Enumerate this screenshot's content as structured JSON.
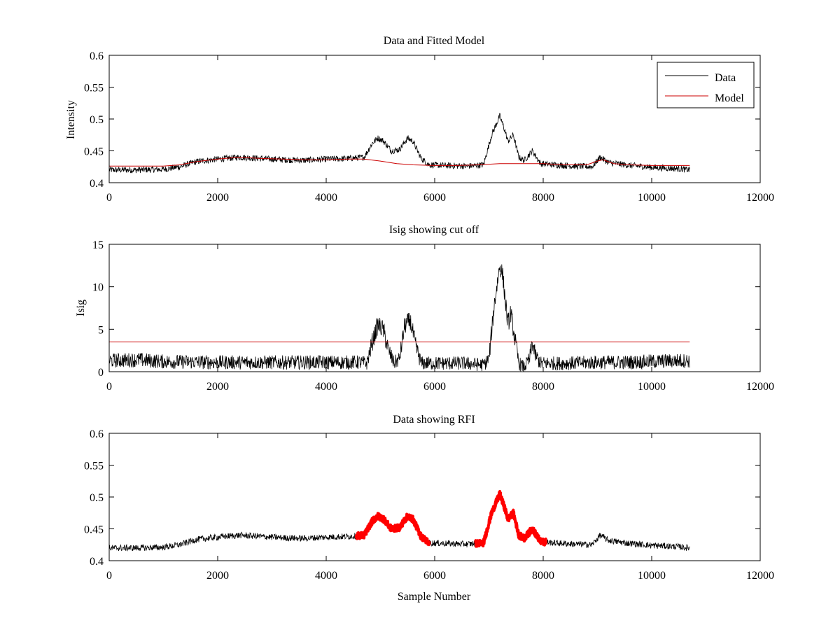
{
  "figure": {
    "background": "#ffffff",
    "data_color": "#000000",
    "model_color": "#cc0000",
    "rfi_color": "#ff0000"
  },
  "chart_data": [
    {
      "type": "line",
      "title": "Data and Fitted Model",
      "xlabel": "",
      "ylabel": "Intensity",
      "xlim": [
        0,
        12000
      ],
      "ylim": [
        0.4,
        0.6
      ],
      "xticks": [
        "0",
        "2000",
        "4000",
        "6000",
        "8000",
        "10000",
        "12000"
      ],
      "yticks": [
        "0.4",
        "0.45",
        "0.5",
        "0.55",
        "0.6"
      ],
      "grid": false,
      "legend": "top-right",
      "noise": 0.005,
      "series": [
        {
          "name": "Data",
          "color": "#000000",
          "x": [
            0,
            500,
            1000,
            1300,
            1600,
            2000,
            2400,
            2800,
            3200,
            3600,
            4000,
            4400,
            4700,
            4850,
            4950,
            5050,
            5200,
            5350,
            5500,
            5600,
            5750,
            5900,
            6200,
            6600,
            6900,
            7050,
            7200,
            7300,
            7350,
            7450,
            7550,
            7650,
            7800,
            7950,
            8200,
            8600,
            8900,
            9050,
            9200,
            9500,
            10000,
            10500,
            10700
          ],
          "y": [
            0.42,
            0.42,
            0.421,
            0.425,
            0.433,
            0.437,
            0.44,
            0.438,
            0.436,
            0.435,
            0.437,
            0.438,
            0.44,
            0.462,
            0.47,
            0.466,
            0.45,
            0.452,
            0.47,
            0.465,
            0.438,
            0.428,
            0.427,
            0.426,
            0.428,
            0.475,
            0.505,
            0.48,
            0.465,
            0.475,
            0.44,
            0.435,
            0.45,
            0.43,
            0.428,
            0.426,
            0.425,
            0.44,
            0.432,
            0.428,
            0.424,
            0.422,
            0.42
          ]
        },
        {
          "name": "Model",
          "color": "#cc0000",
          "x": [
            0,
            1000,
            1300,
            1600,
            2000,
            2400,
            2800,
            3200,
            3600,
            4000,
            4400,
            4700,
            5000,
            5300,
            5600,
            6000,
            6400,
            6800,
            7000,
            7200,
            7600,
            8000,
            8400,
            8800,
            9000,
            9100,
            9300,
            9600,
            10000,
            10700
          ],
          "y": [
            0.426,
            0.426,
            0.428,
            0.433,
            0.437,
            0.44,
            0.438,
            0.437,
            0.436,
            0.436,
            0.437,
            0.437,
            0.434,
            0.43,
            0.428,
            0.427,
            0.427,
            0.428,
            0.429,
            0.43,
            0.43,
            0.43,
            0.428,
            0.428,
            0.434,
            0.436,
            0.43,
            0.428,
            0.427,
            0.427
          ]
        }
      ]
    },
    {
      "type": "line",
      "title": "Isig showing cut off",
      "xlabel": "",
      "ylabel": "Isig",
      "xlim": [
        0,
        12000
      ],
      "ylim": [
        0,
        15
      ],
      "xticks": [
        "0",
        "2000",
        "4000",
        "6000",
        "8000",
        "10000",
        "12000"
      ],
      "yticks": [
        "0",
        "5",
        "10",
        "15"
      ],
      "grid": false,
      "noise": 0.7,
      "series": [
        {
          "name": "Isig",
          "color": "#000000",
          "x": [
            0,
            500,
            1000,
            2000,
            3000,
            4000,
            4600,
            4750,
            4850,
            4950,
            5050,
            5150,
            5250,
            5350,
            5450,
            5550,
            5650,
            5750,
            6000,
            6500,
            6900,
            7000,
            7100,
            7200,
            7250,
            7300,
            7350,
            7400,
            7450,
            7550,
            7650,
            7750,
            7800,
            7850,
            7950,
            8500,
            9000,
            9500,
            10000,
            10500,
            10700
          ],
          "y": [
            1.3,
            1.4,
            1.2,
            1.1,
            1.1,
            1.1,
            1.1,
            1.0,
            3.5,
            5.5,
            5.0,
            2.5,
            1.0,
            1.5,
            5.5,
            6.0,
            3.0,
            1.0,
            1.0,
            1.0,
            0.8,
            1.5,
            8.0,
            12.5,
            11.5,
            8.5,
            5.5,
            7.0,
            5.0,
            1.0,
            0.5,
            1.5,
            3.5,
            2.0,
            1.0,
            1.0,
            1.1,
            1.1,
            1.2,
            1.3,
            1.3
          ]
        },
        {
          "name": "Cut off",
          "color": "#cc0000",
          "x": [
            0,
            10700
          ],
          "y": [
            3.5,
            3.5
          ]
        }
      ]
    },
    {
      "type": "line",
      "title": "Data showing RFI",
      "xlabel": "Sample Number",
      "ylabel": "",
      "xlim": [
        0,
        12000
      ],
      "ylim": [
        0.4,
        0.6
      ],
      "xticks": [
        "0",
        "2000",
        "4000",
        "6000",
        "8000",
        "10000",
        "12000"
      ],
      "yticks": [
        "0.4",
        "0.45",
        "0.5",
        "0.55",
        "0.6"
      ],
      "grid": false,
      "noise": 0.005,
      "series": [
        {
          "name": "Data",
          "color": "#000000",
          "x": [
            0,
            500,
            1000,
            1300,
            1600,
            2000,
            2400,
            2800,
            3200,
            3600,
            4000,
            4400,
            4700,
            4850,
            4950,
            5050,
            5200,
            5350,
            5500,
            5600,
            5750,
            5900,
            6200,
            6600,
            6900,
            7050,
            7200,
            7300,
            7350,
            7450,
            7550,
            7650,
            7800,
            7950,
            8200,
            8600,
            8900,
            9050,
            9200,
            9500,
            10000,
            10500,
            10700
          ],
          "y": [
            0.42,
            0.42,
            0.421,
            0.425,
            0.433,
            0.437,
            0.44,
            0.438,
            0.436,
            0.435,
            0.437,
            0.438,
            0.44,
            0.462,
            0.47,
            0.466,
            0.45,
            0.452,
            0.47,
            0.465,
            0.438,
            0.428,
            0.427,
            0.426,
            0.428,
            0.475,
            0.505,
            0.48,
            0.465,
            0.475,
            0.44,
            0.435,
            0.45,
            0.43,
            0.428,
            0.426,
            0.425,
            0.44,
            0.432,
            0.428,
            0.424,
            0.422,
            0.42
          ]
        }
      ],
      "highlight_ranges": [
        [
          4550,
          5900
        ],
        [
          6750,
          8050
        ]
      ]
    }
  ]
}
